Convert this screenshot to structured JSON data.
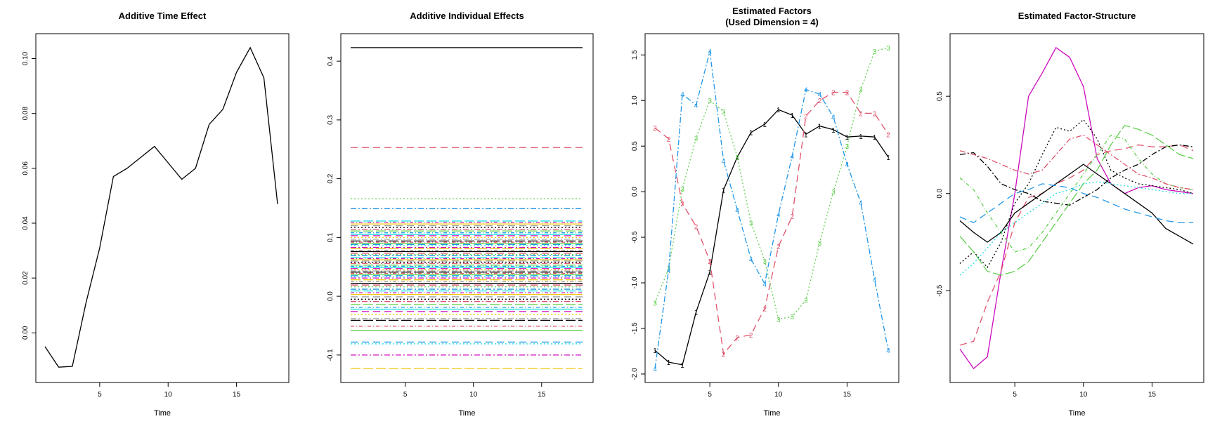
{
  "chart_data": [
    {
      "type": "line",
      "title": "Additive Time Effect",
      "xlabel": "Time",
      "ylabel": "",
      "xlim": [
        1,
        18
      ],
      "ylim": [
        -0.013,
        0.104
      ],
      "xticks": [
        "5",
        "10",
        "15"
      ],
      "yticks": [
        "0.00",
        "0.02",
        "0.04",
        "0.06",
        "0.08",
        "0.10"
      ],
      "x": [
        1,
        2,
        3,
        4,
        5,
        6,
        7,
        8,
        9,
        10,
        11,
        12,
        13,
        14,
        15,
        16,
        17,
        18
      ],
      "series": [
        {
          "color": "#000000",
          "values": [
            -0.005,
            -0.0125,
            -0.0122,
            0.011,
            0.031,
            0.057,
            0.06,
            0.064,
            0.068,
            0.062,
            0.056,
            0.06,
            0.076,
            0.0815,
            0.095,
            0.104,
            0.093,
            0.047
          ]
        }
      ]
    },
    {
      "type": "line",
      "title": "Additive Individual Effects",
      "xlabel": "Time",
      "ylabel": "",
      "xlim": [
        1,
        18
      ],
      "ylim": [
        -0.123,
        0.423
      ],
      "xticks": [
        "5",
        "10",
        "15"
      ],
      "yticks": [
        "-0.1",
        "0.0",
        "0.1",
        "0.2",
        "0.3",
        "0.4"
      ],
      "levels": [
        0.423,
        0.253,
        0.166,
        0.149,
        0.128,
        0.126,
        0.123,
        0.12,
        0.117,
        0.114,
        0.111,
        0.108,
        0.105,
        0.103,
        0.1,
        0.097,
        0.094,
        0.092,
        0.09,
        0.088,
        0.086,
        0.083,
        0.081,
        0.078,
        0.076,
        0.073,
        0.071,
        0.069,
        0.066,
        0.064,
        0.062,
        0.06,
        0.058,
        0.056,
        0.053,
        0.051,
        0.049,
        0.047,
        0.045,
        0.043,
        0.041,
        0.039,
        0.037,
        0.035,
        0.033,
        0.031,
        0.028,
        0.025,
        0.022,
        0.019,
        0.016,
        0.012,
        0.009,
        0.006,
        0.003,
        -0.001,
        -0.005,
        -0.009,
        -0.014,
        -0.019,
        -0.022,
        -0.026,
        -0.031,
        -0.038,
        -0.041,
        -0.051,
        -0.058,
        -0.078,
        -0.081,
        -0.1,
        -0.123
      ],
      "palette": [
        "#000000",
        "#DF536B",
        "#61D04F",
        "#2297E6",
        "#28E2E5",
        "#CD0BBC",
        "#F5C710",
        "#9E9E9E"
      ]
    },
    {
      "type": "line",
      "title": "Estimated Factors",
      "subtitle": "(Used Dimension = 4)",
      "xlabel": "Time",
      "ylabel": "",
      "xlim": [
        1,
        18
      ],
      "ylim": [
        -1.94,
        1.58
      ],
      "xticks": [
        "5",
        "10",
        "15"
      ],
      "yticks": [
        "-2.0",
        "-1.5",
        "-1.0",
        "-0.5",
        "0.0",
        "0.5",
        "1.0",
        "1.5"
      ],
      "x": [
        1,
        2,
        3,
        4,
        5,
        6,
        7,
        8,
        9,
        10,
        11,
        12,
        13,
        14,
        15,
        16,
        17,
        18
      ],
      "series": [
        {
          "name": "1",
          "color": "#000000",
          "values": [
            -1.74,
            -1.87,
            -1.9,
            -1.32,
            -0.88,
            0.02,
            0.38,
            0.65,
            0.74,
            0.9,
            0.84,
            0.63,
            0.72,
            0.68,
            0.6,
            0.61,
            0.6,
            0.38
          ]
        },
        {
          "name": "2",
          "color": "#DF536B",
          "values": [
            0.7,
            0.58,
            -0.13,
            -0.38,
            -0.76,
            -1.78,
            -1.6,
            -1.57,
            -1.28,
            -0.6,
            -0.27,
            0.83,
            1.0,
            1.09,
            1.09,
            0.86,
            0.86,
            0.63
          ]
        },
        {
          "name": "3",
          "color": "#61D04F",
          "values": [
            -1.22,
            -0.84,
            0.03,
            0.59,
            1.0,
            0.88,
            0.38,
            -0.34,
            -0.76,
            -1.4,
            -1.37,
            -1.19,
            -0.56,
            0.0,
            0.5,
            1.12,
            1.54,
            1.58
          ]
        },
        {
          "name": "4",
          "color": "#2297E6",
          "values": [
            -1.94,
            -0.86,
            1.07,
            0.95,
            1.54,
            0.34,
            -0.2,
            -0.74,
            -1.01,
            -0.25,
            0.39,
            1.12,
            1.07,
            0.82,
            0.3,
            -0.12,
            -0.96,
            -1.74
          ]
        }
      ]
    },
    {
      "type": "line",
      "title": "Estimated Factor-Structure",
      "xlabel": "Time",
      "ylabel": "",
      "xlim": [
        1,
        18
      ],
      "ylim": [
        -0.9,
        0.75
      ],
      "xticks": [
        "5",
        "10",
        "15"
      ],
      "yticks": [
        "-0.5",
        "0.0",
        "0.5"
      ],
      "x": [
        1,
        2,
        3,
        4,
        5,
        6,
        7,
        8,
        9,
        10,
        11,
        12,
        13,
        14,
        15,
        16,
        17,
        18
      ],
      "series": [
        {
          "color": "#CD0BBC",
          "values": [
            -0.8,
            -0.9,
            -0.84,
            -0.4,
            0.0,
            0.5,
            0.62,
            0.75,
            0.7,
            0.55,
            0.18,
            0.05,
            0.0,
            0.03,
            0.04,
            0.02,
            0.01,
            0.0
          ]
        },
        {
          "color": "#DF536B",
          "values": [
            -0.78,
            -0.76,
            -0.56,
            -0.4,
            -0.15,
            -0.02,
            0.0,
            0.05,
            0.08,
            0.12,
            0.2,
            0.22,
            0.23,
            0.25,
            0.24,
            0.24,
            0.25,
            0.22
          ]
        },
        {
          "color": "#000000",
          "values": [
            -0.36,
            -0.3,
            -0.38,
            -0.25,
            -0.05,
            0.05,
            0.2,
            0.34,
            0.32,
            0.38,
            0.28,
            0.12,
            0.08,
            0.05,
            0.04,
            0.03,
            0.02,
            0.0
          ]
        },
        {
          "color": "#000000",
          "values": [
            0.2,
            0.21,
            0.14,
            0.05,
            0.02,
            0.0,
            -0.04,
            -0.05,
            -0.06,
            -0.02,
            0.02,
            0.08,
            0.12,
            0.15,
            0.2,
            0.24,
            0.25,
            0.24
          ]
        },
        {
          "color": "#61D04F",
          "values": [
            -0.22,
            -0.3,
            -0.4,
            -0.42,
            -0.4,
            -0.35,
            -0.25,
            -0.15,
            -0.05,
            0.05,
            0.12,
            0.25,
            0.35,
            0.33,
            0.3,
            0.25,
            0.2,
            0.18
          ]
        },
        {
          "color": "#61D04F",
          "values": [
            0.08,
            0.02,
            -0.1,
            -0.2,
            -0.3,
            -0.28,
            -0.2,
            -0.1,
            0.0,
            0.1,
            0.2,
            0.3,
            0.28,
            0.18,
            0.1,
            0.05,
            0.03,
            0.02
          ]
        },
        {
          "color": "#000000",
          "values": [
            -0.14,
            -0.2,
            -0.25,
            -0.2,
            -0.1,
            -0.05,
            0.0,
            0.05,
            0.1,
            0.15,
            0.1,
            0.05,
            0.0,
            -0.05,
            -0.1,
            -0.18,
            -0.22,
            -0.26
          ]
        },
        {
          "color": "#2297E6",
          "values": [
            -0.12,
            -0.15,
            -0.1,
            -0.05,
            0.0,
            0.02,
            0.05,
            0.04,
            0.03,
            0.0,
            -0.02,
            -0.05,
            -0.08,
            -0.1,
            -0.12,
            -0.14,
            -0.15,
            -0.15
          ]
        },
        {
          "color": "#28E2E5",
          "values": [
            -0.42,
            -0.36,
            -0.28,
            -0.2,
            -0.15,
            -0.1,
            -0.05,
            0.0,
            0.02,
            0.05,
            0.06,
            0.05,
            0.04,
            0.03,
            0.02,
            0.01,
            0.0,
            0.0
          ]
        },
        {
          "color": "#DF536B",
          "values": [
            0.22,
            0.2,
            0.18,
            0.15,
            0.12,
            0.1,
            0.12,
            0.2,
            0.28,
            0.3,
            0.25,
            0.2,
            0.15,
            0.1,
            0.08,
            0.05,
            0.03,
            0.02
          ]
        }
      ]
    }
  ]
}
